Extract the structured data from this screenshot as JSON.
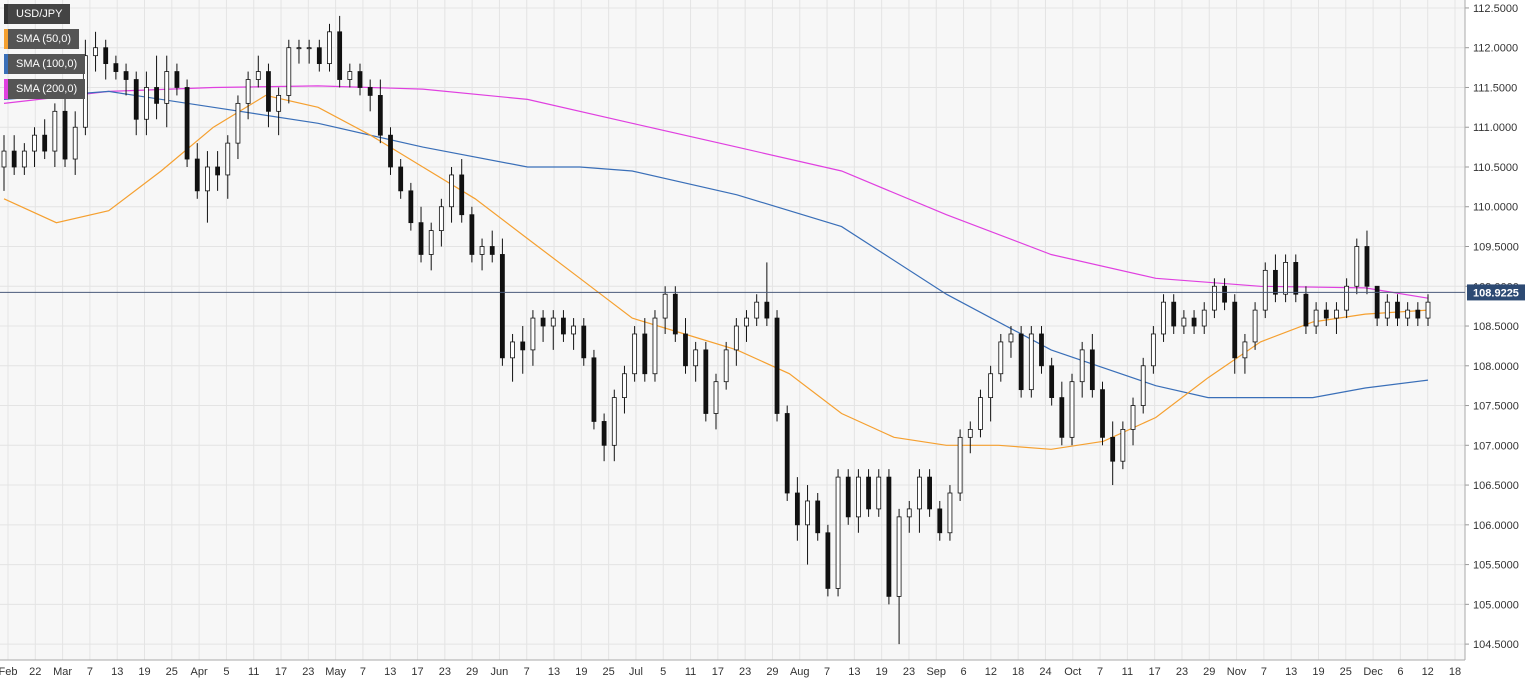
{
  "chart_data": {
    "type": "candlestick",
    "title": "",
    "symbol": "USD/JPY",
    "current_price_label": "108.9225",
    "current_price": 108.9225,
    "ylim": [
      104.3,
      112.6
    ],
    "y_ticks": [
      "112.5000",
      "112.0000",
      "111.5000",
      "111.0000",
      "110.5000",
      "110.0000",
      "109.5000",
      "109.0000",
      "108.5000",
      "108.0000",
      "107.5000",
      "107.0000",
      "106.5000",
      "106.0000",
      "105.5000",
      "105.0000",
      "104.5000"
    ],
    "x_ticks": [
      "Feb",
      "22",
      "Mar",
      "7",
      "13",
      "19",
      "25",
      "Apr",
      "5",
      "11",
      "17",
      "23",
      "May",
      "7",
      "13",
      "17",
      "23",
      "29",
      "Jun",
      "7",
      "13",
      "19",
      "25",
      "Jul",
      "5",
      "11",
      "17",
      "23",
      "29",
      "Aug",
      "7",
      "13",
      "19",
      "23",
      "Sep",
      "6",
      "12",
      "18",
      "24",
      "Oct",
      "7",
      "11",
      "17",
      "23",
      "29",
      "Nov",
      "7",
      "13",
      "19",
      "25",
      "Dec",
      "6",
      "12",
      "18"
    ],
    "legend": [
      {
        "label": "USD/JPY",
        "color": "#333333"
      },
      {
        "label": "SMA (50,0)",
        "color": "#f5a030"
      },
      {
        "label": "SMA (100,0)",
        "color": "#3a6fb8"
      },
      {
        "label": "SMA (200,0)",
        "color": "#e040e0"
      }
    ],
    "grid": true,
    "legend_position": "top-left",
    "colors": {
      "up": "#ffffff",
      "down": "#111111",
      "wick": "#111111",
      "sma50": "#f5a030",
      "sma100": "#3a6fb8",
      "sma200": "#e040e0",
      "price_line": "#4a5a7a",
      "grid": "#e4e4e4",
      "background": "#f7f7f7"
    },
    "candles": [
      [
        110.5,
        110.2,
        110.9,
        110.7
      ],
      [
        110.7,
        110.4,
        110.9,
        110.5
      ],
      [
        110.5,
        110.4,
        110.8,
        110.7
      ],
      [
        110.7,
        110.5,
        111.0,
        110.9
      ],
      [
        110.9,
        110.6,
        111.1,
        110.7
      ],
      [
        110.7,
        110.5,
        111.3,
        111.2
      ],
      [
        111.2,
        110.5,
        111.5,
        110.6
      ],
      [
        110.6,
        110.4,
        111.2,
        111.0
      ],
      [
        111.0,
        110.9,
        112.1,
        111.9
      ],
      [
        111.9,
        111.7,
        112.2,
        112.0
      ],
      [
        112.0,
        111.6,
        112.1,
        111.8
      ],
      [
        111.8,
        111.6,
        111.9,
        111.7
      ],
      [
        111.7,
        111.4,
        111.8,
        111.6
      ],
      [
        111.6,
        110.9,
        111.7,
        111.1
      ],
      [
        111.1,
        110.9,
        111.7,
        111.5
      ],
      [
        111.5,
        111.1,
        111.9,
        111.3
      ],
      [
        111.3,
        111.0,
        111.9,
        111.7
      ],
      [
        111.7,
        111.4,
        111.8,
        111.5
      ],
      [
        111.5,
        110.5,
        111.6,
        110.6
      ],
      [
        110.6,
        110.1,
        110.8,
        110.2
      ],
      [
        110.2,
        109.8,
        110.7,
        110.5
      ],
      [
        110.5,
        110.2,
        110.7,
        110.4
      ],
      [
        110.4,
        110.1,
        110.9,
        110.8
      ],
      [
        110.8,
        110.6,
        111.4,
        111.3
      ],
      [
        111.3,
        111.1,
        111.7,
        111.6
      ],
      [
        111.6,
        111.5,
        111.9,
        111.7
      ],
      [
        111.7,
        111.0,
        111.8,
        111.2
      ],
      [
        111.2,
        110.9,
        111.5,
        111.4
      ],
      [
        111.4,
        111.3,
        112.1,
        112.0
      ],
      [
        112.0,
        111.8,
        112.1,
        112.0
      ],
      [
        112.0,
        111.8,
        112.1,
        112.0
      ],
      [
        112.0,
        111.7,
        112.1,
        111.8
      ],
      [
        111.8,
        111.7,
        112.3,
        112.2
      ],
      [
        112.2,
        111.5,
        112.4,
        111.6
      ],
      [
        111.6,
        111.5,
        111.8,
        111.7
      ],
      [
        111.7,
        111.4,
        111.8,
        111.5
      ],
      [
        111.5,
        111.2,
        111.6,
        111.4
      ],
      [
        111.4,
        110.8,
        111.6,
        110.9
      ],
      [
        110.9,
        110.4,
        111.0,
        110.5
      ],
      [
        110.5,
        110.1,
        110.6,
        110.2
      ],
      [
        110.2,
        109.7,
        110.3,
        109.8
      ],
      [
        109.8,
        109.3,
        110.0,
        109.4
      ],
      [
        109.4,
        109.2,
        109.8,
        109.7
      ],
      [
        109.7,
        109.5,
        110.1,
        110.0
      ],
      [
        110.0,
        109.8,
        110.5,
        110.4
      ],
      [
        110.4,
        109.8,
        110.6,
        109.9
      ],
      [
        109.9,
        109.3,
        110.0,
        109.4
      ],
      [
        109.4,
        109.2,
        109.6,
        109.5
      ],
      [
        109.5,
        109.3,
        109.7,
        109.4
      ],
      [
        109.4,
        108.0,
        109.6,
        108.1
      ],
      [
        108.1,
        107.8,
        108.4,
        108.3
      ],
      [
        108.3,
        107.9,
        108.5,
        108.2
      ],
      [
        108.2,
        108.0,
        108.7,
        108.6
      ],
      [
        108.6,
        108.3,
        108.7,
        108.5
      ],
      [
        108.5,
        108.2,
        108.7,
        108.6
      ],
      [
        108.6,
        108.3,
        108.7,
        108.4
      ],
      [
        108.4,
        108.2,
        108.6,
        108.5
      ],
      [
        108.5,
        108.0,
        108.6,
        108.1
      ],
      [
        108.1,
        107.2,
        108.2,
        107.3
      ],
      [
        107.3,
        106.8,
        107.4,
        107.0
      ],
      [
        107.0,
        106.8,
        107.7,
        107.6
      ],
      [
        107.6,
        107.4,
        108.0,
        107.9
      ],
      [
        107.9,
        107.8,
        108.5,
        108.4
      ],
      [
        108.4,
        107.8,
        108.6,
        107.9
      ],
      [
        107.9,
        107.8,
        108.7,
        108.6
      ],
      [
        108.6,
        108.4,
        109.0,
        108.9
      ],
      [
        108.9,
        108.3,
        109.0,
        108.4
      ],
      [
        108.4,
        107.9,
        108.6,
        108.0
      ],
      [
        108.0,
        107.8,
        108.3,
        108.2
      ],
      [
        108.2,
        107.3,
        108.3,
        107.4
      ],
      [
        107.4,
        107.2,
        107.9,
        107.8
      ],
      [
        107.8,
        107.7,
        108.3,
        108.2
      ],
      [
        108.2,
        108.0,
        108.6,
        108.5
      ],
      [
        108.5,
        108.3,
        108.7,
        108.6
      ],
      [
        108.6,
        108.5,
        108.9,
        108.8
      ],
      [
        108.8,
        108.5,
        109.3,
        108.6
      ],
      [
        108.6,
        107.3,
        108.7,
        107.4
      ],
      [
        107.4,
        106.3,
        107.5,
        106.4
      ],
      [
        106.4,
        105.8,
        106.6,
        106.0
      ],
      [
        106.0,
        105.5,
        106.5,
        106.3
      ],
      [
        106.3,
        105.8,
        106.4,
        105.9
      ],
      [
        105.9,
        105.1,
        106.0,
        105.2
      ],
      [
        105.2,
        105.1,
        106.7,
        106.6
      ],
      [
        106.6,
        106.0,
        106.7,
        106.1
      ],
      [
        106.1,
        105.9,
        106.7,
        106.6
      ],
      [
        106.6,
        106.1,
        106.7,
        106.2
      ],
      [
        106.2,
        106.1,
        106.7,
        106.6
      ],
      [
        106.6,
        105.0,
        106.7,
        105.1
      ],
      [
        105.1,
        104.5,
        106.2,
        106.1
      ],
      [
        106.1,
        105.9,
        106.3,
        106.2
      ],
      [
        106.2,
        105.9,
        106.7,
        106.6
      ],
      [
        106.6,
        106.1,
        106.7,
        106.2
      ],
      [
        106.2,
        105.8,
        106.3,
        105.9
      ],
      [
        105.9,
        105.8,
        106.5,
        106.4
      ],
      [
        106.4,
        106.3,
        107.2,
        107.1
      ],
      [
        107.1,
        106.9,
        107.3,
        107.2
      ],
      [
        107.2,
        107.1,
        107.7,
        107.6
      ],
      [
        107.6,
        107.3,
        108.0,
        107.9
      ],
      [
        107.9,
        107.8,
        108.4,
        108.3
      ],
      [
        108.3,
        108.1,
        108.5,
        108.4
      ],
      [
        108.4,
        107.6,
        108.5,
        107.7
      ],
      [
        107.7,
        107.6,
        108.5,
        108.4
      ],
      [
        108.4,
        107.9,
        108.5,
        108.0
      ],
      [
        108.0,
        107.5,
        108.1,
        107.6
      ],
      [
        107.6,
        107.0,
        107.8,
        107.1
      ],
      [
        107.1,
        107.0,
        107.9,
        107.8
      ],
      [
        107.8,
        107.6,
        108.3,
        108.2
      ],
      [
        108.2,
        107.6,
        108.4,
        107.7
      ],
      [
        107.7,
        107.0,
        107.8,
        107.1
      ],
      [
        107.1,
        106.5,
        107.3,
        106.8
      ],
      [
        106.8,
        106.7,
        107.3,
        107.2
      ],
      [
        107.2,
        107.0,
        107.6,
        107.5
      ],
      [
        107.5,
        107.4,
        108.1,
        108.0
      ],
      [
        108.0,
        107.9,
        108.5,
        108.4
      ],
      [
        108.4,
        108.3,
        108.9,
        108.8
      ],
      [
        108.8,
        108.4,
        108.9,
        108.5
      ],
      [
        108.5,
        108.4,
        108.7,
        108.6
      ],
      [
        108.6,
        108.4,
        108.7,
        108.5
      ],
      [
        108.5,
        108.4,
        108.8,
        108.7
      ],
      [
        108.7,
        108.6,
        109.1,
        109.0
      ],
      [
        109.0,
        108.7,
        109.1,
        108.8
      ],
      [
        108.8,
        107.9,
        108.9,
        108.1
      ],
      [
        108.1,
        107.9,
        108.4,
        108.3
      ],
      [
        108.3,
        108.2,
        108.8,
        108.7
      ],
      [
        108.7,
        108.6,
        109.3,
        109.2
      ],
      [
        109.2,
        108.8,
        109.4,
        108.9
      ],
      [
        108.9,
        108.8,
        109.4,
        109.3
      ],
      [
        109.3,
        108.8,
        109.4,
        108.9
      ],
      [
        108.9,
        108.4,
        109.0,
        108.5
      ],
      [
        108.5,
        108.4,
        108.8,
        108.7
      ],
      [
        108.7,
        108.5,
        108.8,
        108.6
      ],
      [
        108.6,
        108.4,
        108.8,
        108.7
      ],
      [
        108.7,
        108.6,
        109.1,
        109.0
      ],
      [
        109.0,
        108.9,
        109.6,
        109.5
      ],
      [
        109.5,
        108.9,
        109.7,
        109.0
      ],
      [
        109.0,
        108.5,
        109.0,
        108.6
      ],
      [
        108.6,
        108.5,
        108.9,
        108.8
      ],
      [
        108.8,
        108.5,
        108.9,
        108.6
      ],
      [
        108.6,
        108.5,
        108.8,
        108.7
      ],
      [
        108.7,
        108.5,
        108.8,
        108.6
      ],
      [
        108.6,
        108.5,
        108.9,
        108.8
      ]
    ],
    "sma50": [
      [
        0,
        110.1
      ],
      [
        15,
        109.8
      ],
      [
        30,
        109.95
      ],
      [
        45,
        110.45
      ],
      [
        60,
        111.0
      ],
      [
        75,
        111.4
      ],
      [
        90,
        111.25
      ],
      [
        105,
        110.9
      ],
      [
        120,
        110.5
      ],
      [
        135,
        110.1
      ],
      [
        150,
        109.6
      ],
      [
        165,
        109.1
      ],
      [
        180,
        108.6
      ],
      [
        195,
        108.4
      ],
      [
        210,
        108.2
      ],
      [
        225,
        107.9
      ],
      [
        240,
        107.4
      ],
      [
        255,
        107.1
      ],
      [
        270,
        107.0
      ],
      [
        285,
        107.0
      ],
      [
        300,
        106.95
      ],
      [
        315,
        107.05
      ],
      [
        330,
        107.35
      ],
      [
        345,
        107.85
      ],
      [
        360,
        108.3
      ],
      [
        375,
        108.55
      ],
      [
        390,
        108.65
      ],
      [
        408,
        108.7
      ]
    ],
    "sma100": [
      [
        0,
        111.35
      ],
      [
        30,
        111.45
      ],
      [
        60,
        111.25
      ],
      [
        90,
        111.05
      ],
      [
        120,
        110.75
      ],
      [
        150,
        110.5
      ],
      [
        165,
        110.5
      ],
      [
        180,
        110.45
      ],
      [
        210,
        110.15
      ],
      [
        240,
        109.75
      ],
      [
        270,
        108.9
      ],
      [
        300,
        108.2
      ],
      [
        330,
        107.75
      ],
      [
        345,
        107.6
      ],
      [
        360,
        107.6
      ],
      [
        375,
        107.6
      ],
      [
        390,
        107.72
      ],
      [
        408,
        107.82
      ]
    ],
    "sma200": [
      [
        0,
        111.3
      ],
      [
        30,
        111.45
      ],
      [
        60,
        111.5
      ],
      [
        90,
        111.52
      ],
      [
        120,
        111.48
      ],
      [
        150,
        111.35
      ],
      [
        180,
        111.05
      ],
      [
        210,
        110.75
      ],
      [
        240,
        110.45
      ],
      [
        270,
        109.9
      ],
      [
        300,
        109.4
      ],
      [
        330,
        109.1
      ],
      [
        360,
        109.0
      ],
      [
        390,
        108.98
      ],
      [
        408,
        108.85
      ]
    ]
  }
}
